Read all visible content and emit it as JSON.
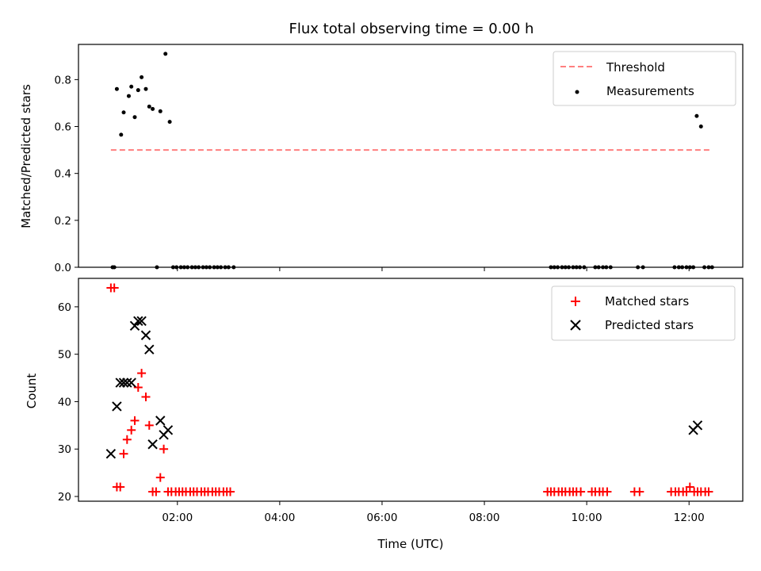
{
  "figure": {
    "title": "Flux total observing time = 0.00 h",
    "xlabel": "Time (UTC)"
  },
  "chart_data": [
    {
      "type": "scatter",
      "ylabel": "Matched/Predicted stars",
      "xlim": [
        "00:04",
        "13:03"
      ],
      "ylim": [
        0,
        0.95
      ],
      "yticks": [
        0.0,
        0.2,
        0.4,
        0.6,
        0.8
      ],
      "ytick_labels": [
        "0.0",
        "0.2",
        "0.4",
        "0.6",
        "0.8"
      ],
      "legend_position": "top-right",
      "threshold": {
        "name": "Threshold",
        "value": 0.5,
        "x_start": "00:42",
        "x_end": "12:24",
        "color": "#ff7f7f",
        "style": "dashed"
      },
      "series": [
        {
          "name": "Measurements",
          "color": "#000000",
          "marker": "dot",
          "points": [
            [
              "00:44",
              0.0
            ],
            [
              "00:46",
              0.0
            ],
            [
              "00:49",
              0.76
            ],
            [
              "00:54",
              0.565
            ],
            [
              "00:57",
              0.66
            ],
            [
              "01:03",
              0.73
            ],
            [
              "01:06",
              0.77
            ],
            [
              "01:10",
              0.64
            ],
            [
              "01:14",
              0.755
            ],
            [
              "01:18",
              0.81
            ],
            [
              "01:23",
              0.76
            ],
            [
              "01:27",
              0.685
            ],
            [
              "01:31",
              0.675
            ],
            [
              "01:36",
              0.0
            ],
            [
              "01:40",
              0.665
            ],
            [
              "01:46",
              0.91
            ],
            [
              "01:51",
              0.62
            ],
            [
              "01:55",
              0.0
            ],
            [
              "01:59",
              0.0
            ],
            [
              "02:04",
              0.0
            ],
            [
              "02:08",
              0.0
            ],
            [
              "02:12",
              0.0
            ],
            [
              "02:17",
              0.0
            ],
            [
              "02:21",
              0.0
            ],
            [
              "02:25",
              0.0
            ],
            [
              "02:30",
              0.0
            ],
            [
              "02:34",
              0.0
            ],
            [
              "02:38",
              0.0
            ],
            [
              "02:43",
              0.0
            ],
            [
              "02:47",
              0.0
            ],
            [
              "02:51",
              0.0
            ],
            [
              "02:56",
              0.0
            ],
            [
              "03:00",
              0.0
            ],
            [
              "03:06",
              0.0
            ],
            [
              "09:18",
              0.0
            ],
            [
              "09:22",
              0.0
            ],
            [
              "09:26",
              0.0
            ],
            [
              "09:31",
              0.0
            ],
            [
              "09:35",
              0.0
            ],
            [
              "09:39",
              0.0
            ],
            [
              "09:44",
              0.0
            ],
            [
              "09:48",
              0.0
            ],
            [
              "09:52",
              0.0
            ],
            [
              "09:57",
              0.0
            ],
            [
              "10:10",
              0.0
            ],
            [
              "10:14",
              0.0
            ],
            [
              "10:19",
              0.0
            ],
            [
              "10:23",
              0.0
            ],
            [
              "10:28",
              0.0
            ],
            [
              "11:00",
              0.0
            ],
            [
              "11:06",
              0.0
            ],
            [
              "11:43",
              0.0
            ],
            [
              "11:48",
              0.0
            ],
            [
              "11:52",
              0.0
            ],
            [
              "11:57",
              0.0
            ],
            [
              "12:01",
              0.0
            ],
            [
              "12:05",
              0.0
            ],
            [
              "12:09",
              0.645
            ],
            [
              "12:14",
              0.6
            ],
            [
              "12:18",
              0.0
            ],
            [
              "12:23",
              0.0
            ],
            [
              "12:27",
              0.0
            ]
          ]
        }
      ]
    },
    {
      "type": "scatter",
      "ylabel": "Count",
      "xlim": [
        "00:04",
        "13:03"
      ],
      "ylim": [
        19,
        66
      ],
      "yticks": [
        20,
        30,
        40,
        50,
        60
      ],
      "ytick_labels": [
        "20",
        "30",
        "40",
        "50",
        "60"
      ],
      "xticks": [
        "02:00",
        "04:00",
        "06:00",
        "08:00",
        "10:00",
        "12:00"
      ],
      "legend_position": "top-right",
      "series": [
        {
          "name": "Matched stars",
          "color": "#ff0000",
          "marker": "plus",
          "points": [
            [
              "00:42",
              64
            ],
            [
              "00:46",
              64
            ],
            [
              "00:49",
              22
            ],
            [
              "00:53",
              22
            ],
            [
              "00:57",
              29
            ],
            [
              "01:01",
              32
            ],
            [
              "01:06",
              34
            ],
            [
              "01:10",
              36
            ],
            [
              "01:14",
              43
            ],
            [
              "01:18",
              46
            ],
            [
              "01:23",
              41
            ],
            [
              "01:27",
              35
            ],
            [
              "01:31",
              21
            ],
            [
              "01:35",
              21
            ],
            [
              "01:40",
              24
            ],
            [
              "01:44",
              30
            ],
            [
              "01:49",
              21
            ],
            [
              "01:53",
              21
            ],
            [
              "01:58",
              21
            ],
            [
              "02:02",
              21
            ],
            [
              "02:06",
              21
            ],
            [
              "02:10",
              21
            ],
            [
              "02:15",
              21
            ],
            [
              "02:19",
              21
            ],
            [
              "02:23",
              21
            ],
            [
              "02:28",
              21
            ],
            [
              "02:32",
              21
            ],
            [
              "02:36",
              21
            ],
            [
              "02:41",
              21
            ],
            [
              "02:45",
              21
            ],
            [
              "02:49",
              21
            ],
            [
              "02:54",
              21
            ],
            [
              "02:58",
              21
            ],
            [
              "03:02",
              21
            ],
            [
              "09:14",
              21
            ],
            [
              "09:18",
              21
            ],
            [
              "09:22",
              21
            ],
            [
              "09:27",
              21
            ],
            [
              "09:31",
              21
            ],
            [
              "09:35",
              21
            ],
            [
              "09:40",
              21
            ],
            [
              "09:44",
              21
            ],
            [
              "09:48",
              21
            ],
            [
              "09:53",
              21
            ],
            [
              "10:06",
              21
            ],
            [
              "10:10",
              21
            ],
            [
              "10:15",
              21
            ],
            [
              "10:19",
              21
            ],
            [
              "10:24",
              21
            ],
            [
              "10:56",
              21
            ],
            [
              "11:02",
              21
            ],
            [
              "11:39",
              21
            ],
            [
              "11:44",
              21
            ],
            [
              "11:48",
              21
            ],
            [
              "11:53",
              21
            ],
            [
              "11:57",
              21
            ],
            [
              "12:01",
              22
            ],
            [
              "12:06",
              21
            ],
            [
              "12:10",
              21
            ],
            [
              "12:14",
              21
            ],
            [
              "12:19",
              21
            ],
            [
              "12:23",
              21
            ]
          ]
        },
        {
          "name": "Predicted stars",
          "color": "#000000",
          "marker": "x",
          "points": [
            [
              "00:42",
              29
            ],
            [
              "00:49",
              39
            ],
            [
              "00:53",
              44
            ],
            [
              "00:57",
              44
            ],
            [
              "01:01",
              44
            ],
            [
              "01:06",
              44
            ],
            [
              "01:10",
              56
            ],
            [
              "01:14",
              57
            ],
            [
              "01:18",
              57
            ],
            [
              "01:23",
              54
            ],
            [
              "01:27",
              51
            ],
            [
              "01:31",
              31
            ],
            [
              "01:40",
              36
            ],
            [
              "01:44",
              33
            ],
            [
              "01:49",
              34
            ],
            [
              "12:05",
              34
            ],
            [
              "12:10",
              35
            ]
          ]
        }
      ]
    }
  ]
}
